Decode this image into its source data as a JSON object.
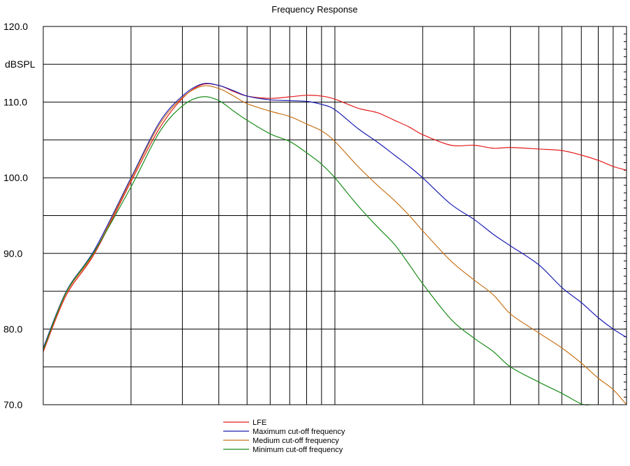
{
  "chart_data": {
    "type": "line",
    "title": "Frequency Response",
    "xlabel": "",
    "ylabel": "dBSPL",
    "xscale": "log",
    "xlim": [
      10,
      1000
    ],
    "ylim": [
      70,
      120
    ],
    "yticks": [
      "120.0",
      "110.0",
      "100.0",
      "90.0",
      "80.0",
      "70.0"
    ],
    "grid": true,
    "legend": {
      "placement": "bottom"
    },
    "series": [
      {
        "name": "LFE",
        "color": "#e41b1b",
        "x": [
          10,
          12,
          15,
          20,
          25,
          30,
          35,
          40,
          45,
          50,
          60,
          70,
          80,
          90,
          100,
          120,
          140,
          160,
          180,
          200,
          250,
          300,
          350,
          400,
          500,
          600,
          700,
          800,
          900,
          1000
        ],
        "y": [
          77.0,
          84.5,
          90.0,
          99.5,
          106.5,
          110.5,
          112.3,
          112.2,
          111.4,
          110.8,
          110.5,
          110.7,
          110.9,
          110.8,
          110.4,
          109.2,
          108.6,
          107.6,
          106.7,
          105.7,
          104.3,
          104.3,
          103.9,
          104.0,
          103.8,
          103.6,
          103.0,
          102.3,
          101.5,
          101.0
        ]
      },
      {
        "name": "Maximum cut-off frequency",
        "color": "#1b1bb3",
        "x": [
          10,
          12,
          15,
          20,
          25,
          30,
          35,
          40,
          45,
          50,
          60,
          70,
          80,
          90,
          100,
          120,
          140,
          160,
          180,
          200,
          250,
          300,
          350,
          400,
          500,
          600,
          700,
          800,
          900,
          1000
        ],
        "y": [
          77.5,
          85.0,
          90.5,
          100.0,
          107.3,
          110.8,
          112.4,
          112.2,
          111.5,
          110.8,
          110.3,
          110.2,
          110.1,
          109.7,
          109.0,
          106.5,
          104.7,
          103.0,
          101.5,
          100.0,
          96.5,
          94.5,
          92.5,
          91.0,
          88.5,
          85.5,
          83.5,
          81.5,
          80.0,
          78.9
        ]
      },
      {
        "name": "Medium cut-off frequency",
        "color": "#c8731a",
        "x": [
          10,
          12,
          15,
          20,
          25,
          30,
          35,
          40,
          45,
          50,
          60,
          70,
          80,
          90,
          100,
          120,
          140,
          160,
          180,
          200,
          250,
          300,
          350,
          400,
          500,
          600,
          700,
          800,
          900,
          1000
        ],
        "y": [
          77.2,
          84.8,
          90.2,
          99.8,
          107.0,
          110.6,
          112.1,
          111.8,
          110.8,
          109.8,
          108.8,
          108.1,
          107.1,
          106.2,
          104.8,
          101.5,
          99.0,
          97.0,
          95.0,
          93.0,
          89.0,
          86.5,
          84.5,
          82.0,
          79.5,
          77.5,
          75.5,
          73.5,
          72.0,
          70.0
        ]
      },
      {
        "name": "Minimum cut-off frequency",
        "color": "#1b8c1b",
        "x": [
          10,
          12,
          15,
          20,
          25,
          30,
          35,
          40,
          45,
          50,
          60,
          70,
          80,
          90,
          100,
          120,
          140,
          160,
          180,
          200,
          250,
          300,
          350,
          400,
          500,
          600,
          700,
          750
        ],
        "y": [
          77.3,
          84.9,
          90.3,
          98.8,
          106.0,
          109.5,
          110.7,
          110.2,
          108.8,
          107.6,
          105.8,
          104.8,
          103.3,
          101.8,
          100.0,
          96.3,
          93.5,
          91.2,
          88.5,
          86.0,
          81.3,
          78.8,
          77.0,
          75.0,
          73.0,
          71.5,
          70.1,
          70.0
        ]
      }
    ]
  }
}
